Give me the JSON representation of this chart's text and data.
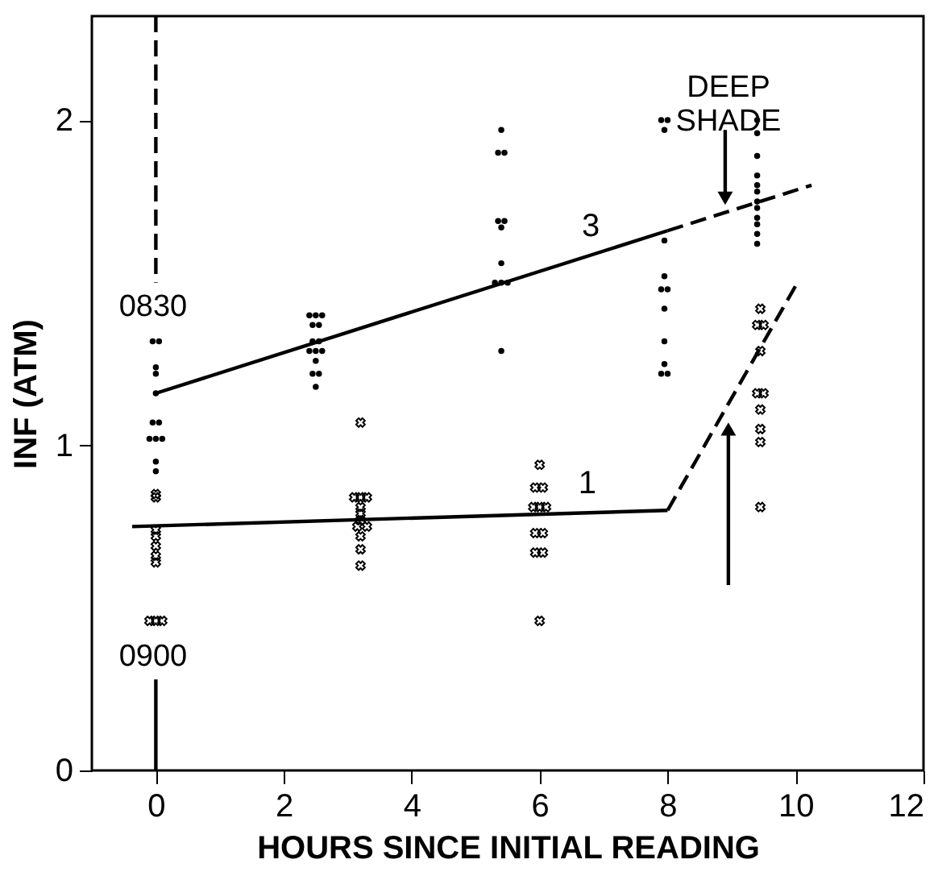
{
  "chart_data": {
    "type": "scatter",
    "xlabel": "HOURS SINCE INITIAL READING",
    "ylabel": "INF (ATM)",
    "xlim": [
      -1,
      12
    ],
    "xticks": [
      0,
      2,
      4,
      6,
      8,
      10,
      12
    ],
    "ylim": [
      0,
      2.32
    ],
    "yticks": [
      0,
      1,
      2
    ],
    "grid": false,
    "series": [
      {
        "marker": "circle",
        "color": "#000000",
        "x": [
          -0.05,
          0.05,
          0,
          0,
          0,
          -0.05,
          0.05,
          -0.1,
          0,
          0.1,
          0,
          0,
          2.4,
          2.5,
          2.6,
          2.45,
          2.55,
          2.45,
          2.55,
          2.4,
          2.5,
          2.6,
          2.5,
          2.45,
          2.55,
          2.5,
          5.4,
          5.35,
          5.45,
          5.35,
          5.45,
          5.4,
          5.4,
          5.3,
          5.4,
          5.5,
          5.4,
          7.9,
          8.0,
          7.95,
          7.95,
          7.95,
          7.9,
          8.0,
          7.95,
          7.95,
          7.95,
          7.9,
          8.0,
          9.4,
          9.4,
          9.4,
          9.4,
          9.4,
          9.4,
          9.4,
          9.4,
          9.4,
          9.4,
          9.4,
          9.4
        ],
        "values": [
          1.32,
          1.32,
          1.24,
          1.22,
          1.16,
          1.07,
          1.07,
          1.02,
          1.02,
          1.02,
          0.95,
          0.92,
          1.4,
          1.4,
          1.4,
          1.37,
          1.37,
          1.32,
          1.32,
          1.29,
          1.29,
          1.29,
          1.26,
          1.22,
          1.22,
          1.18,
          1.97,
          1.9,
          1.9,
          1.69,
          1.69,
          1.67,
          1.56,
          1.5,
          1.5,
          1.5,
          1.29,
          2.0,
          2.0,
          1.97,
          1.63,
          1.52,
          1.48,
          1.48,
          1.42,
          1.32,
          1.25,
          1.22,
          1.22,
          2.0,
          1.96,
          1.89,
          1.83,
          1.8,
          1.78,
          1.75,
          1.73,
          1.7,
          1.68,
          1.65,
          1.62
        ]
      },
      {
        "marker": "cross",
        "color": "#000000",
        "x": [
          0,
          0,
          0,
          0,
          0,
          0,
          0,
          -0.1,
          0,
          0.1,
          3.2,
          3.1,
          3.2,
          3.3,
          3.2,
          3.2,
          3.2,
          3.15,
          3.3,
          3.2,
          3.2,
          3.2,
          6,
          5.93,
          6.05,
          5.9,
          6,
          6.1,
          5.93,
          6.05,
          5.93,
          6.05,
          6,
          9.45,
          9.4,
          9.5,
          9.45,
          9.4,
          9.5,
          9.45,
          9.45,
          9.45,
          9.45
        ],
        "values": [
          0.85,
          0.84,
          0.74,
          0.72,
          0.69,
          0.66,
          0.64,
          0.46,
          0.46,
          0.46,
          1.07,
          0.84,
          0.84,
          0.84,
          0.81,
          0.79,
          0.77,
          0.75,
          0.75,
          0.72,
          0.68,
          0.63,
          0.94,
          0.87,
          0.87,
          0.81,
          0.81,
          0.81,
          0.73,
          0.73,
          0.67,
          0.67,
          0.46,
          1.42,
          1.37,
          1.37,
          1.29,
          1.16,
          1.16,
          1.11,
          1.05,
          1.01,
          0.81
        ]
      },
      {
        "type": "line",
        "name": "3",
        "line_style": "solid",
        "color": "#000000",
        "x": [
          0,
          8
        ],
        "values": [
          1.16,
          1.66
        ]
      },
      {
        "type": "line",
        "line_style": "dashed",
        "color": "#000000",
        "x": [
          8,
          10.25
        ],
        "values": [
          1.66,
          1.8
        ]
      },
      {
        "type": "line",
        "name": "1",
        "line_style": "solid",
        "color": "#000000",
        "x": [
          -0.37,
          8
        ],
        "values": [
          0.75,
          0.8
        ]
      },
      {
        "type": "line",
        "line_style": "dashed",
        "color": "#000000",
        "x": [
          8,
          10
        ],
        "values": [
          0.8,
          1.49
        ]
      },
      {
        "type": "line",
        "line_style": "dashed",
        "color": "#000000",
        "x": [
          0,
          0
        ],
        "values": [
          2.32,
          1.5
        ]
      },
      {
        "type": "line",
        "line_style": "solid",
        "color": "#000000",
        "x": [
          0,
          0
        ],
        "values": [
          0.28,
          0
        ]
      },
      {
        "type": "line",
        "line_style": "solid",
        "marker": "triangle",
        "color": "#000000",
        "x": [
          8.9,
          8.9
        ],
        "values": [
          1.97,
          1.76
        ]
      },
      {
        "type": "line",
        "line_style": "solid",
        "marker": "triangle",
        "color": "#000000",
        "x": [
          8.95,
          8.95
        ],
        "values": [
          0.57,
          1.05
        ]
      }
    ],
    "annotations": [
      "DEEP SHADE",
      "0830",
      "0900"
    ]
  }
}
